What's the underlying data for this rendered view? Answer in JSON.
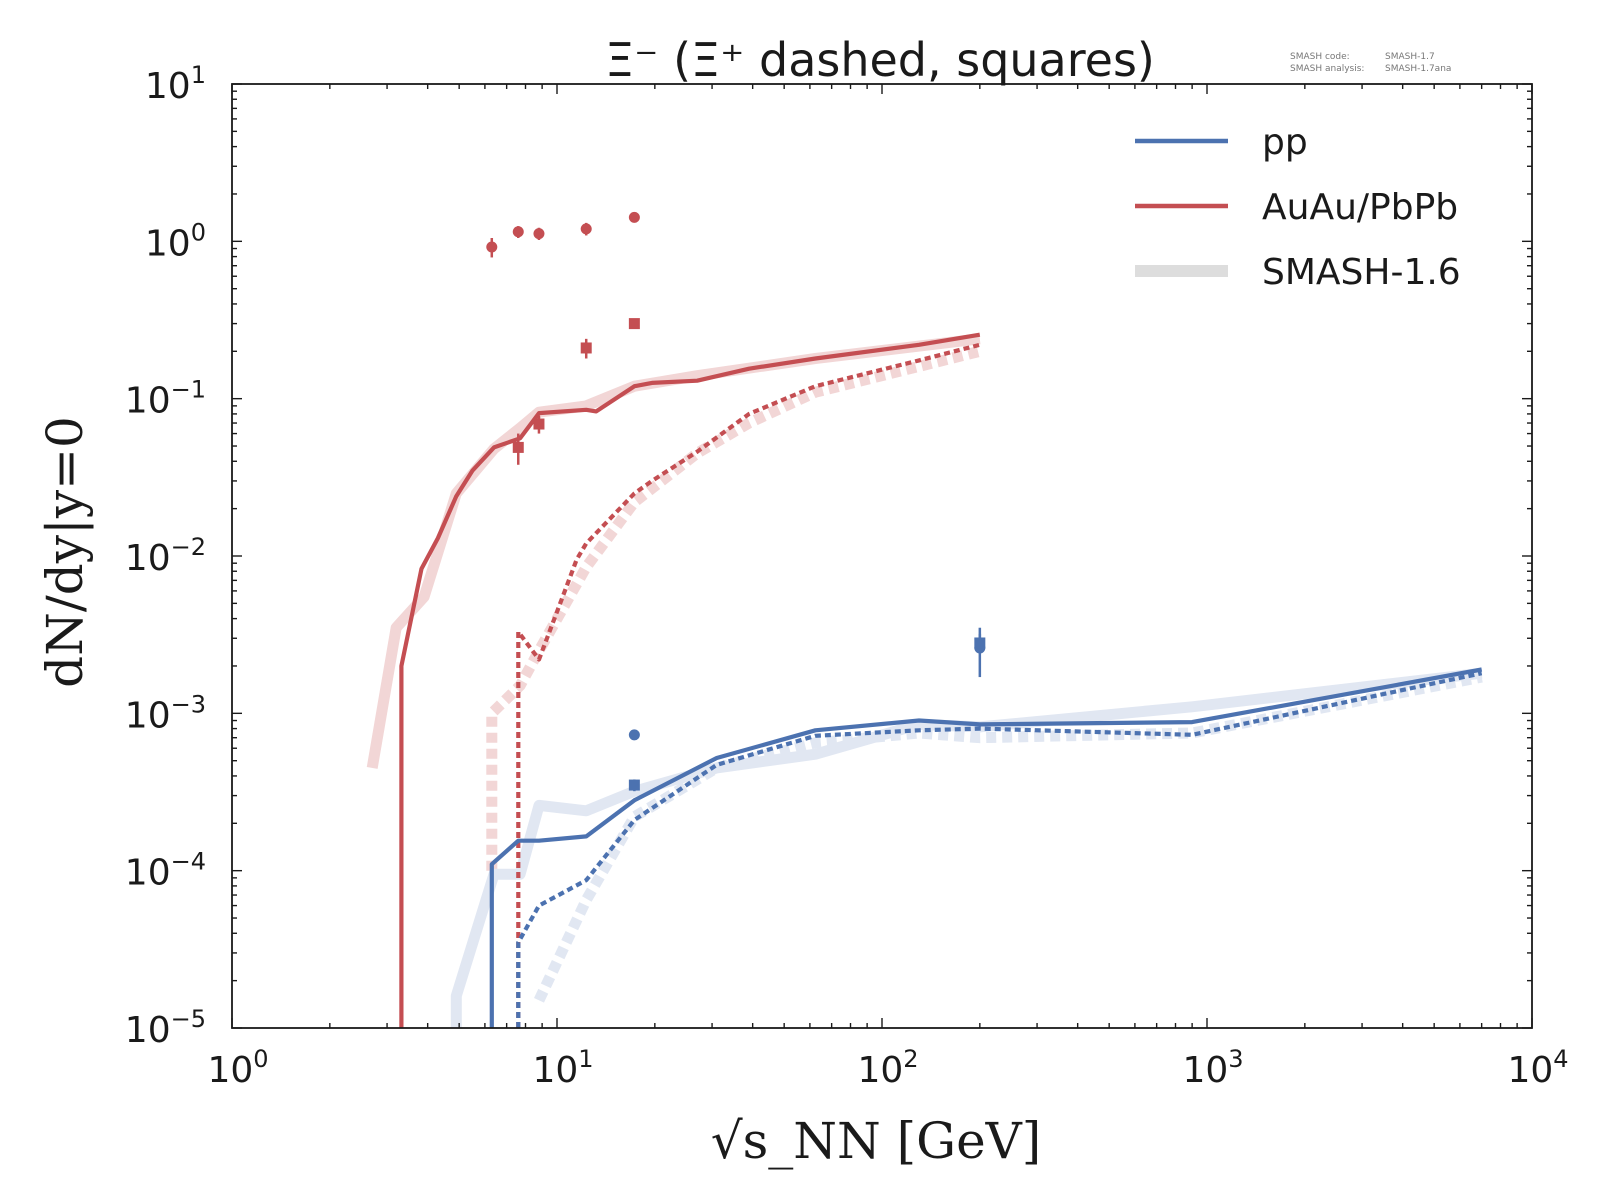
{
  "chart_data": {
    "type": "line",
    "title": "Ξ⁻ (Ξ⁺ dashed, squares)",
    "xlabel": "√s_NN [GeV]",
    "ylabel": "dN/dy|y=0",
    "xscale": "log",
    "yscale": "log",
    "xlim": [
      1,
      10000
    ],
    "ylim": [
      1e-05,
      10
    ],
    "x_ticks": [
      {
        "base": "10",
        "exp": "0"
      },
      {
        "base": "10",
        "exp": "1"
      },
      {
        "base": "10",
        "exp": "2"
      },
      {
        "base": "10",
        "exp": "3"
      },
      {
        "base": "10",
        "exp": "4"
      }
    ],
    "y_ticks": [
      {
        "base": "10",
        "exp": "1"
      },
      {
        "base": "10",
        "exp": "0"
      },
      {
        "base": "10",
        "exp": "−1"
      },
      {
        "base": "10",
        "exp": "−2"
      },
      {
        "base": "10",
        "exp": "−3"
      },
      {
        "base": "10",
        "exp": "−4"
      },
      {
        "base": "10",
        "exp": "−5"
      }
    ],
    "legend_position": "top-right",
    "legend": [
      {
        "label": "pp",
        "color": "#4c72b0",
        "style": "solid"
      },
      {
        "label": "AuAu/PbPb",
        "color": "#c44e52",
        "style": "solid"
      },
      {
        "label": "SMASH-1.6",
        "color": "#dddddd",
        "style": "wide"
      }
    ],
    "annotation": {
      "code_label": "SMASH code:",
      "code_value": "SMASH-1.7",
      "analysis_label": "SMASH analysis:",
      "analysis_value": "SMASH-1.7ana"
    },
    "series": [
      {
        "system": "AuAu/PbPb",
        "particle": "Ξ⁻",
        "version": "current",
        "color": "#c44e52",
        "style": "solid",
        "points": [
          [
            3.32,
            1e-05
          ],
          [
            3.32,
            0.002
          ],
          [
            3.83,
            0.0083
          ],
          [
            4.3,
            0.013
          ],
          [
            4.9,
            0.024
          ],
          [
            5.5,
            0.035
          ],
          [
            6.4,
            0.049
          ],
          [
            7.7,
            0.056
          ],
          [
            8.8,
            0.081
          ],
          [
            12.3,
            0.085
          ],
          [
            13.2,
            0.083
          ],
          [
            17.3,
            0.12
          ],
          [
            19.6,
            0.126
          ],
          [
            27,
            0.13
          ],
          [
            39,
            0.155
          ],
          [
            62.4,
            0.18
          ],
          [
            130,
            0.22
          ],
          [
            200,
            0.255
          ]
        ]
      },
      {
        "system": "AuAu/PbPb",
        "particle": "Ξ⁺",
        "version": "current",
        "color": "#c44e52",
        "style": "dashed",
        "points": [
          [
            7.6,
            1e-05
          ],
          [
            7.6,
            0.0033
          ],
          [
            8.8,
            0.0022
          ],
          [
            11.5,
            0.0095
          ],
          [
            12.3,
            0.012
          ],
          [
            17.3,
            0.025
          ],
          [
            19.6,
            0.03
          ],
          [
            27,
            0.046
          ],
          [
            39,
            0.08
          ],
          [
            62.4,
            0.12
          ],
          [
            130,
            0.175
          ],
          [
            200,
            0.22
          ]
        ]
      },
      {
        "system": "pp",
        "particle": "Ξ⁻",
        "version": "current",
        "color": "#4c72b0",
        "style": "solid",
        "points": [
          [
            6.3,
            1e-05
          ],
          [
            6.3,
            0.00011
          ],
          [
            7.6,
            0.000155
          ],
          [
            8.8,
            0.000155
          ],
          [
            12.3,
            0.000165
          ],
          [
            17.3,
            0.00028
          ],
          [
            31,
            0.00052
          ],
          [
            62.4,
            0.00078
          ],
          [
            130,
            0.0009
          ],
          [
            200,
            0.00085
          ],
          [
            900,
            0.00088
          ],
          [
            7000,
            0.0019
          ]
        ]
      },
      {
        "system": "pp",
        "particle": "Ξ⁺",
        "version": "current",
        "color": "#4c72b0",
        "style": "dashed",
        "points": [
          [
            7.6,
            1e-05
          ],
          [
            7.6,
            3.5e-05
          ],
          [
            8.8,
            6e-05
          ],
          [
            12.3,
            8.7e-05
          ],
          [
            17.3,
            0.00021
          ],
          [
            31,
            0.00047
          ],
          [
            62.4,
            0.00072
          ],
          [
            130,
            0.00078
          ],
          [
            200,
            0.0008
          ],
          [
            900,
            0.00073
          ],
          [
            7000,
            0.0018
          ]
        ]
      },
      {
        "system": "AuAu/PbPb",
        "particle": "Ξ⁻",
        "version": "SMASH-1.6",
        "color": "#f2d6d6",
        "style": "wide",
        "points": [
          [
            2.7,
            0.00045
          ],
          [
            3.2,
            0.0035
          ],
          [
            3.9,
            0.0055
          ],
          [
            4.9,
            0.025
          ],
          [
            6.4,
            0.048
          ],
          [
            7.7,
            0.065
          ],
          [
            8.8,
            0.082
          ],
          [
            12.3,
            0.09
          ],
          [
            17.3,
            0.12
          ],
          [
            27,
            0.14
          ],
          [
            62.4,
            0.18
          ],
          [
            200,
            0.24
          ]
        ]
      },
      {
        "system": "AuAu/PbPb",
        "particle": "Ξ⁺",
        "version": "SMASH-1.6",
        "color": "#f2d6d6",
        "style": "wide-dashed",
        "points": [
          [
            6.3,
            0.0001
          ],
          [
            6.3,
            0.001
          ],
          [
            7.7,
            0.0015
          ],
          [
            8.8,
            0.0025
          ],
          [
            12.3,
            0.0085
          ],
          [
            17.3,
            0.022
          ],
          [
            27,
            0.045
          ],
          [
            39,
            0.07
          ],
          [
            62.4,
            0.11
          ],
          [
            200,
            0.2
          ]
        ]
      },
      {
        "system": "pp",
        "particle": "Ξ⁻",
        "version": "SMASH-1.6",
        "color": "#e1e7f2",
        "style": "wide",
        "points": [
          [
            4.9,
            1e-05
          ],
          [
            4.9,
            1.6e-05
          ],
          [
            6.4,
            9.5e-05
          ],
          [
            7.7,
            9.5e-05
          ],
          [
            8.8,
            0.00026
          ],
          [
            12.3,
            0.00024
          ],
          [
            17.3,
            0.00032
          ],
          [
            31,
            0.00045
          ],
          [
            62.4,
            0.00055
          ],
          [
            130,
            0.00085
          ],
          [
            200,
            0.00082
          ],
          [
            900,
            0.0011
          ],
          [
            7000,
            0.0018
          ]
        ]
      },
      {
        "system": "pp",
        "particle": "Ξ⁺",
        "version": "SMASH-1.6",
        "color": "#e1e7f2",
        "style": "wide-dashed",
        "points": [
          [
            8.8,
            1.5e-05
          ],
          [
            12.3,
            6.5e-05
          ],
          [
            17.3,
            0.00022
          ],
          [
            31,
            0.00045
          ],
          [
            62.4,
            0.00065
          ],
          [
            130,
            0.00075
          ],
          [
            200,
            0.0007
          ],
          [
            900,
            0.00075
          ],
          [
            7000,
            0.0017
          ]
        ]
      }
    ],
    "measurements": [
      {
        "system": "AuAu/PbPb",
        "particle": "Ξ⁻",
        "marker": "circle",
        "color": "#c44e52",
        "points": [
          [
            6.3,
            0.92,
            0.13
          ],
          [
            7.6,
            1.15,
            0.1
          ],
          [
            8.8,
            1.12,
            0.1
          ],
          [
            12.3,
            1.2,
            0.11
          ],
          [
            17.3,
            1.42,
            0.1
          ]
        ]
      },
      {
        "system": "AuAu/PbPb",
        "particle": "Ξ⁺",
        "marker": "square",
        "color": "#c44e52",
        "points": [
          [
            7.6,
            0.049,
            0.011
          ],
          [
            8.8,
            0.069,
            0.009
          ],
          [
            12.3,
            0.21,
            0.03
          ],
          [
            17.3,
            0.3,
            0.02
          ]
        ]
      },
      {
        "system": "pp",
        "particle": "Ξ⁻",
        "marker": "circle",
        "color": "#4c72b0",
        "points": [
          [
            17.3,
            0.00073,
            3e-05
          ],
          [
            200,
            0.0026,
            0.0009
          ]
        ]
      },
      {
        "system": "pp",
        "particle": "Ξ⁺",
        "marker": "square",
        "color": "#4c72b0",
        "points": [
          [
            17.3,
            0.00035,
            3e-05
          ],
          [
            200,
            0.0028,
            0.0004
          ]
        ]
      }
    ]
  }
}
